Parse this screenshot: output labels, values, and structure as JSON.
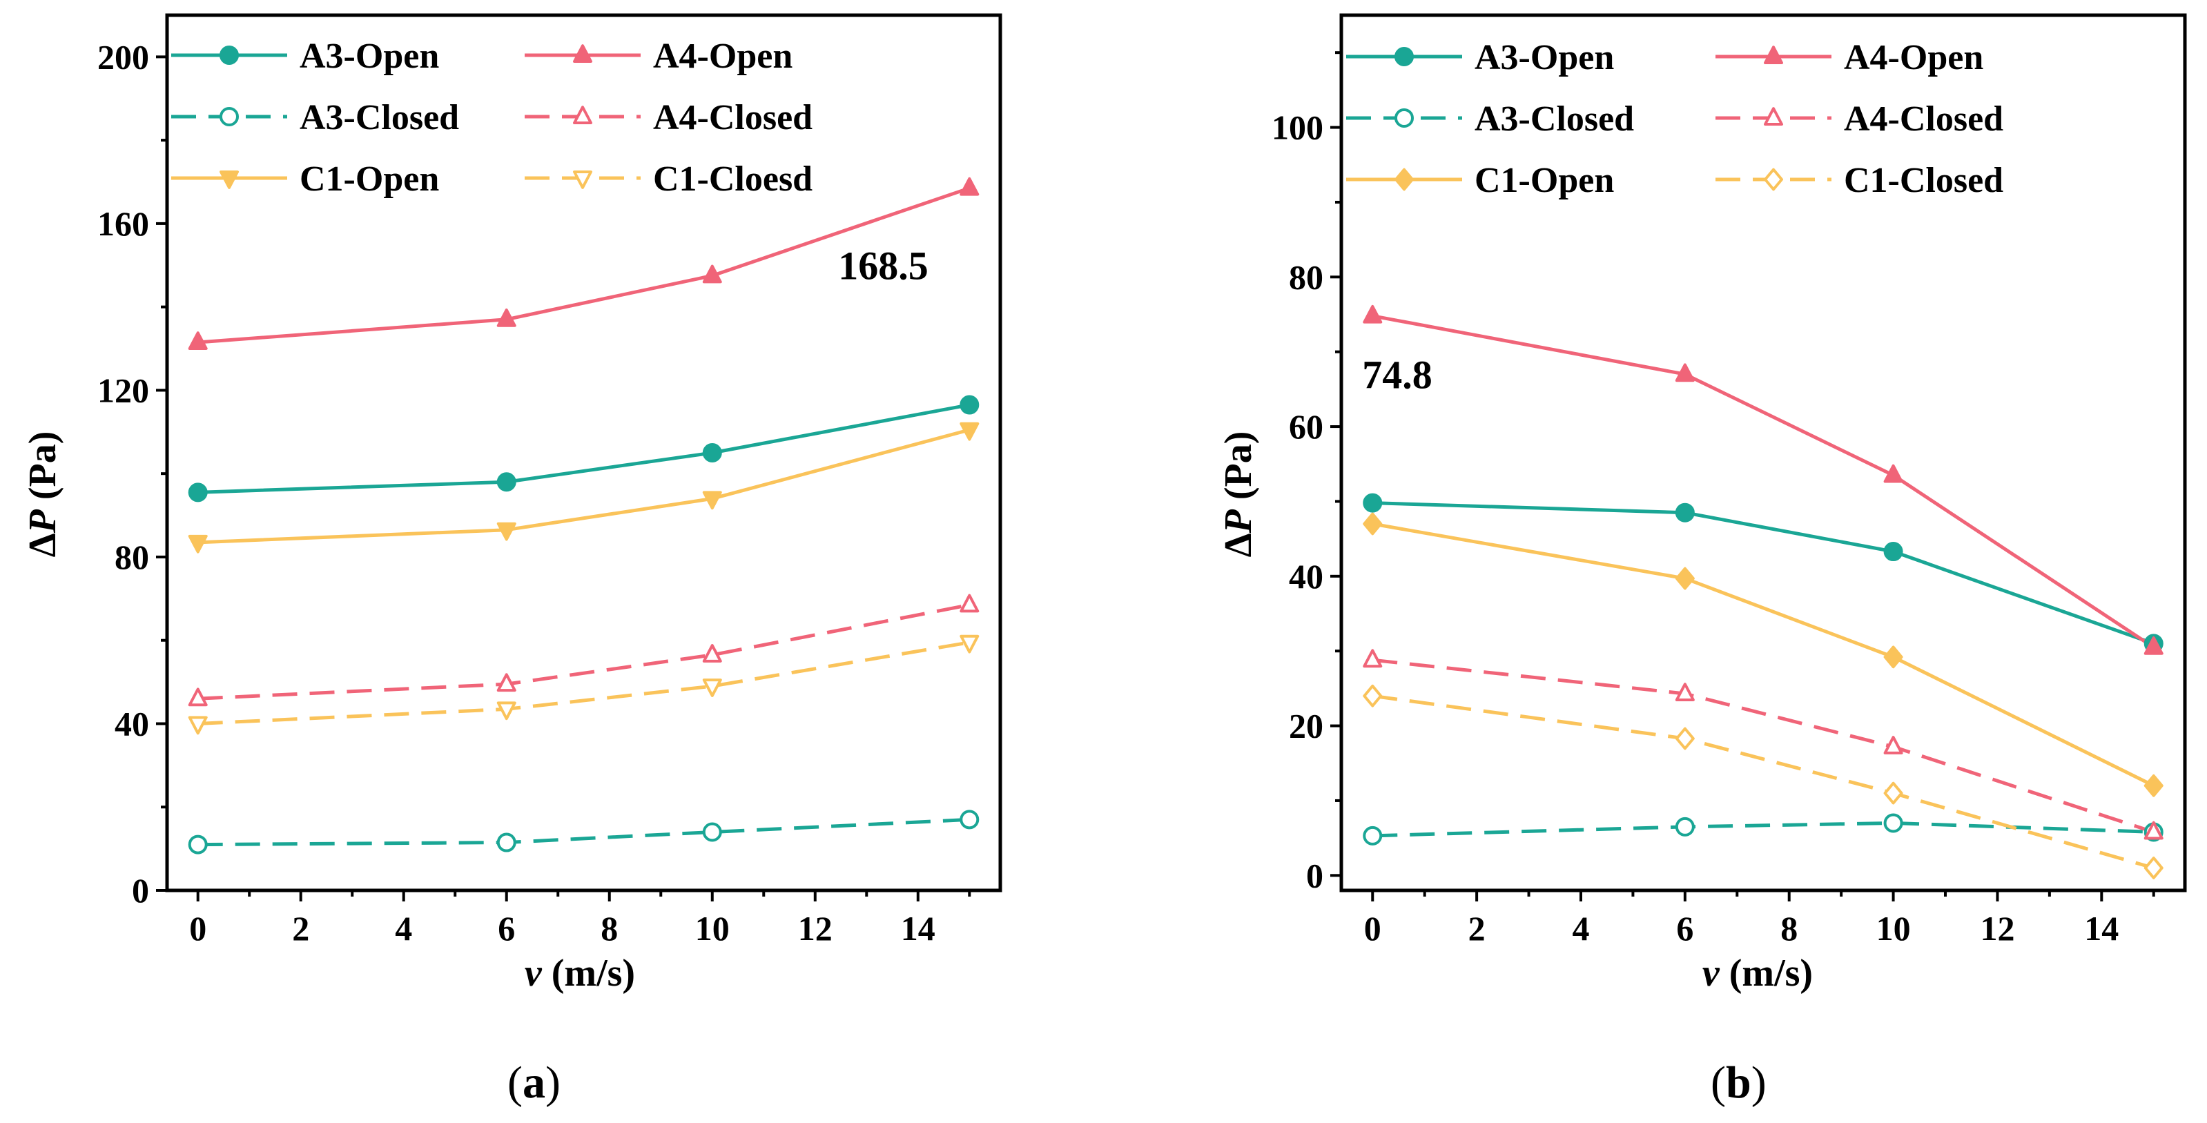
{
  "chart_data": [
    {
      "type": "line",
      "panel_label": "(a)",
      "panel_letter": "a",
      "xlabel_var": "v",
      "xlabel_unit": " (m/s)",
      "ylabel_prefix": "Δ",
      "ylabel_var": "P",
      "ylabel_unit": " (Pa)",
      "xlim": [
        -0.6,
        15.6
      ],
      "ylim": [
        0,
        210
      ],
      "xticks": [
        0,
        2,
        4,
        6,
        8,
        10,
        12,
        14
      ],
      "yticks": [
        0,
        40,
        80,
        120,
        160,
        200
      ],
      "x": [
        0,
        6,
        10,
        15
      ],
      "series": [
        {
          "name": "A3-Open",
          "values": [
            95.5,
            98.0,
            105.0,
            116.5
          ],
          "color": "#1AA695",
          "dashed": false,
          "marker": "circle",
          "filled": true
        },
        {
          "name": "A4-Open",
          "values": [
            131.5,
            137.0,
            147.5,
            168.5
          ],
          "color": "#F06478",
          "dashed": false,
          "marker": "triangle-up",
          "filled": true
        },
        {
          "name": "A3-Closed",
          "values": [
            11.0,
            11.5,
            14.0,
            17.0
          ],
          "color": "#1AA695",
          "dashed": true,
          "marker": "circle",
          "filled": false
        },
        {
          "name": "A4-Closed",
          "values": [
            46.0,
            49.5,
            56.5,
            68.5
          ],
          "color": "#F06478",
          "dashed": true,
          "marker": "triangle-up",
          "filled": false
        },
        {
          "name": "C1-Open",
          "values": [
            83.5,
            86.5,
            94.0,
            110.5
          ],
          "color": "#FAC35A",
          "dashed": false,
          "marker": "triangle-down",
          "filled": true
        },
        {
          "name": "C1-Cloesd",
          "values": [
            40.0,
            43.5,
            49.0,
            59.5
          ],
          "color": "#FAC35A",
          "dashed": true,
          "marker": "triangle-down",
          "filled": false
        }
      ],
      "annotation": {
        "text": "168.5",
        "x": 15,
        "y": 168.5
      }
    },
    {
      "type": "line",
      "panel_label": "(b)",
      "panel_letter": "b",
      "xlabel_var": "v",
      "xlabel_unit": " (m/s)",
      "ylabel_prefix": "Δ",
      "ylabel_var": "P",
      "ylabel_unit": " (Pa)",
      "xlim": [
        -0.6,
        15.6
      ],
      "ylim": [
        -2,
        115
      ],
      "xticks": [
        0,
        2,
        4,
        6,
        8,
        10,
        12,
        14
      ],
      "yticks": [
        0,
        20,
        40,
        60,
        80,
        100
      ],
      "x": [
        0,
        6,
        10,
        15
      ],
      "series": [
        {
          "name": "A3-Open",
          "values": [
            49.8,
            48.5,
            43.3,
            31.0
          ],
          "color": "#1AA695",
          "dashed": false,
          "marker": "circle",
          "filled": true
        },
        {
          "name": "A4-Open",
          "values": [
            74.8,
            67.0,
            53.5,
            30.5
          ],
          "color": "#F06478",
          "dashed": false,
          "marker": "triangle-up",
          "filled": true
        },
        {
          "name": "A3-Closed",
          "values": [
            5.3,
            6.5,
            7.0,
            5.8
          ],
          "color": "#1AA695",
          "dashed": true,
          "marker": "circle",
          "filled": false
        },
        {
          "name": "A4-Closed",
          "values": [
            28.8,
            24.3,
            17.2,
            5.8
          ],
          "color": "#F06478",
          "dashed": true,
          "marker": "triangle-up",
          "filled": false
        },
        {
          "name": "C1-Open",
          "values": [
            47.0,
            39.7,
            29.2,
            12.0
          ],
          "color": "#FAC35A",
          "dashed": false,
          "marker": "diamond",
          "filled": true
        },
        {
          "name": "C1-Closed",
          "values": [
            24.0,
            18.3,
            11.0,
            1.0
          ],
          "color": "#FAC35A",
          "dashed": true,
          "marker": "diamond",
          "filled": false
        }
      ],
      "annotation": {
        "text": "74.8",
        "x": 0,
        "y": 74.8
      }
    }
  ]
}
